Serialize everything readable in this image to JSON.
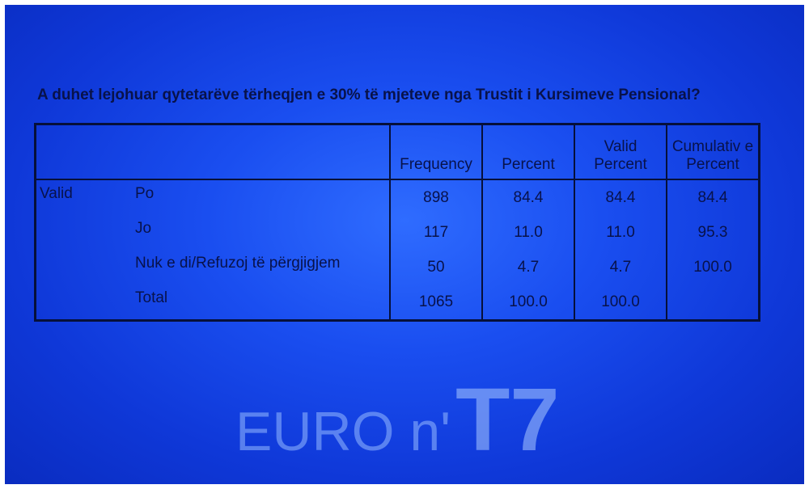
{
  "title": "A duhet lejohuar qytetarëve tërheqjen e 30% të mjeteve nga Trustit i Kursimeve Pensional?",
  "table": {
    "headers": [
      "Frequency",
      "Percent",
      "Valid Percent",
      "Cumulativ e Percent"
    ],
    "group": "Valid",
    "rows": [
      {
        "label": "Po",
        "cells": [
          "898",
          "84.4",
          "84.4",
          "84.4"
        ]
      },
      {
        "label": "Jo",
        "cells": [
          "117",
          "11.0",
          "11.0",
          "95.3"
        ]
      },
      {
        "label": "Nuk e di/Refuzoj të përgjigjem",
        "cells": [
          "50",
          "4.7",
          "4.7",
          "100.0"
        ]
      },
      {
        "label": "Total",
        "cells": [
          "1065",
          "100.0",
          "100.0"
        ]
      }
    ]
  },
  "logo": {
    "text": "EURO n'",
    "mark": "T7"
  }
}
